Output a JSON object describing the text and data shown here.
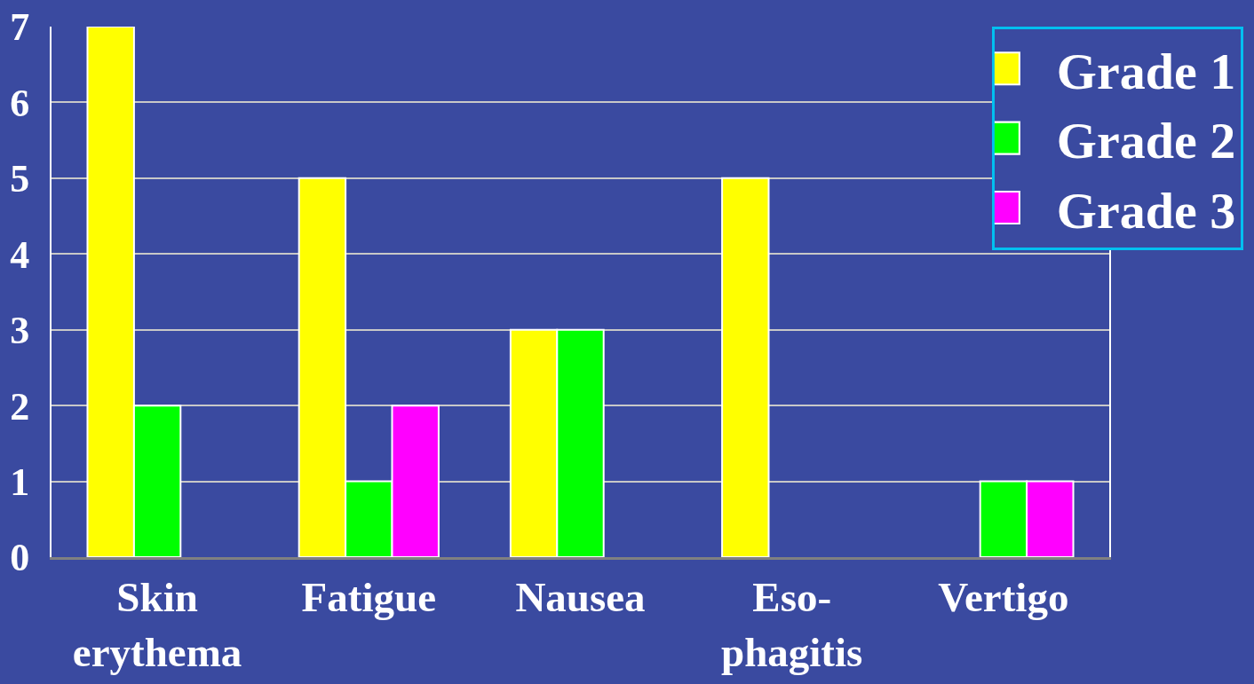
{
  "chart_data": {
    "type": "bar",
    "categories": [
      "Skin\nerythema",
      "Fatigue",
      "Nausea",
      "Eso-\nphagitis",
      "Vertigo"
    ],
    "series": [
      {
        "name": "Grade 1",
        "color": "#ffff00",
        "values": [
          7,
          5,
          3,
          5,
          null
        ]
      },
      {
        "name": "Grade 2",
        "color": "#00ff00",
        "values": [
          2,
          1,
          3,
          null,
          1
        ]
      },
      {
        "name": "Grade 3",
        "color": "#ff00ff",
        "values": [
          null,
          2,
          null,
          null,
          1
        ]
      }
    ],
    "ylim": [
      0,
      7
    ],
    "yticks": [
      0,
      1,
      2,
      3,
      4,
      5,
      6,
      7
    ],
    "grid": "y",
    "legend": "top right"
  }
}
